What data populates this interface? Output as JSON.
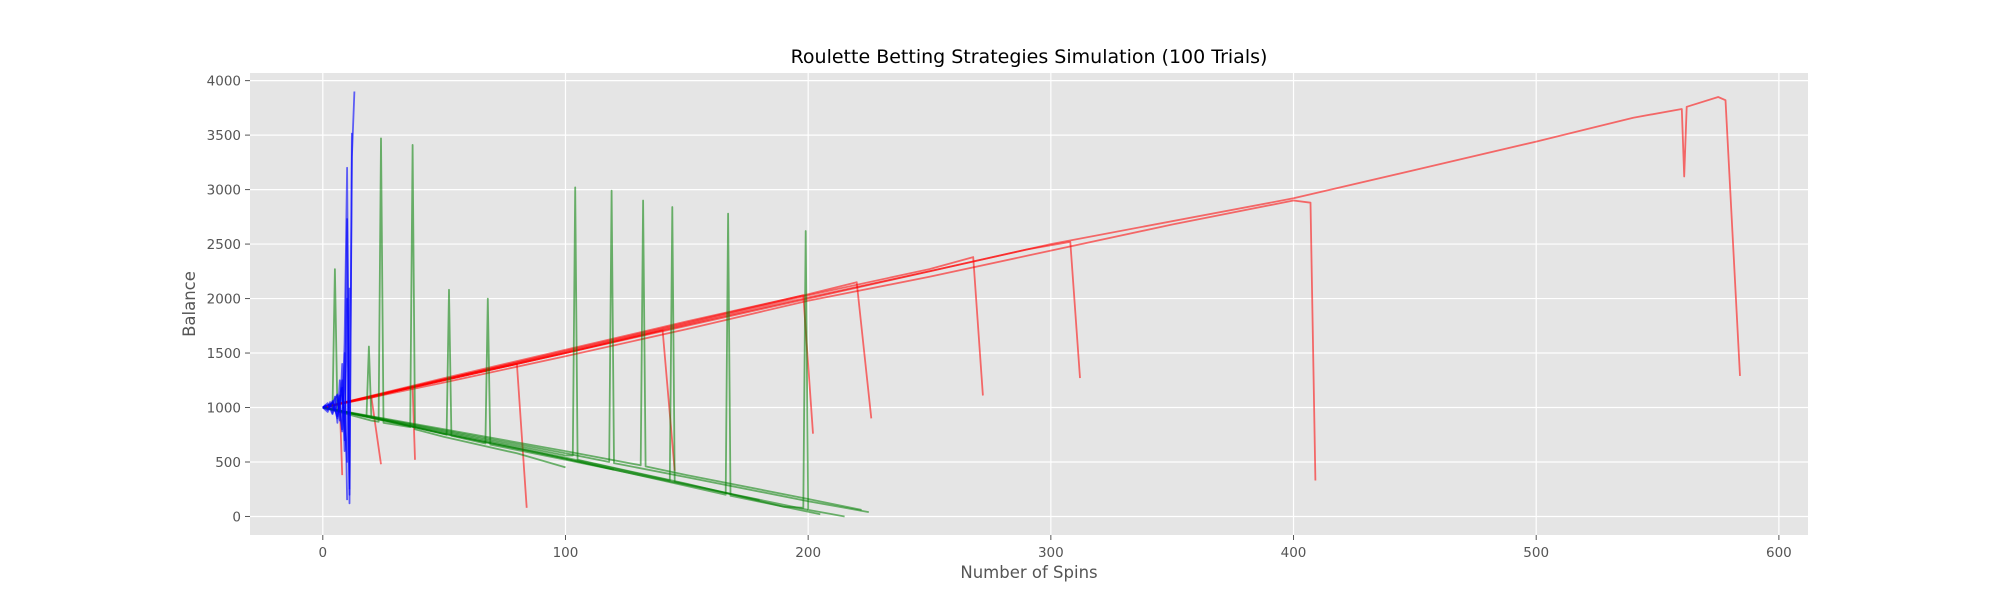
{
  "colors": {
    "background": "#ffffff",
    "plot_background": "#e5e5e5",
    "grid": "#ffffff",
    "text": "#555555",
    "title": "#000000"
  },
  "chart_data": {
    "type": "line",
    "title": "Roulette Betting Strategies Simulation (100 Trials)",
    "xlabel": "Number of Spins",
    "ylabel": "Balance",
    "xlim": [
      -30,
      612
    ],
    "ylim": [
      -170,
      4070
    ],
    "xticks": [
      0,
      100,
      200,
      300,
      400,
      500,
      600
    ],
    "yticks": [
      0,
      500,
      1000,
      1500,
      2000,
      2500,
      3000,
      3500,
      4000
    ],
    "grid": true,
    "legend": "none",
    "series": [
      {
        "color": "#ff0000",
        "opacity": 0.55,
        "x": [
          0,
          50,
          100,
          150,
          200,
          250,
          300,
          350,
          400,
          407,
          409
        ],
        "y": [
          1000,
          1230,
          1470,
          1720,
          1980,
          2200,
          2440,
          2680,
          2900,
          2880,
          330
        ]
      },
      {
        "color": "#ff0000",
        "opacity": 0.55,
        "x": [
          0,
          100,
          200,
          300,
          400,
          450,
          500,
          540,
          560,
          561,
          562,
          575,
          578,
          584
        ],
        "y": [
          1000,
          1500,
          2000,
          2500,
          2920,
          3180,
          3440,
          3660,
          3740,
          3120,
          3760,
          3850,
          3820,
          1290
        ]
      },
      {
        "color": "#ff0000",
        "opacity": 0.55,
        "x": [
          0,
          50,
          100,
          150,
          200,
          250,
          290,
          308,
          312
        ],
        "y": [
          1000,
          1250,
          1500,
          1760,
          2010,
          2250,
          2450,
          2520,
          1270
        ]
      },
      {
        "color": "#ff0000",
        "opacity": 0.55,
        "x": [
          0,
          50,
          100,
          150,
          200,
          250,
          268,
          272
        ],
        "y": [
          1000,
          1260,
          1510,
          1770,
          2030,
          2270,
          2380,
          1110
        ]
      },
      {
        "color": "#ff0000",
        "opacity": 0.55,
        "x": [
          0,
          50,
          100,
          150,
          200,
          220,
          226
        ],
        "y": [
          1000,
          1270,
          1530,
          1790,
          2040,
          2150,
          900
        ]
      },
      {
        "color": "#ff0000",
        "opacity": 0.55,
        "x": [
          0,
          50,
          100,
          150,
          198,
          202
        ],
        "y": [
          1000,
          1260,
          1520,
          1780,
          2030,
          760
        ]
      },
      {
        "color": "#ff0000",
        "opacity": 0.55,
        "x": [
          0,
          50,
          100,
          140,
          145
        ],
        "y": [
          1000,
          1250,
          1500,
          1710,
          420
        ]
      },
      {
        "color": "#ff0000",
        "opacity": 0.55,
        "x": [
          0,
          20,
          40,
          60,
          80,
          84
        ],
        "y": [
          1000,
          1100,
          1200,
          1310,
          1400,
          80
        ]
      },
      {
        "color": "#ff0000",
        "opacity": 0.55,
        "x": [
          0,
          20,
          37,
          38
        ],
        "y": [
          1000,
          1090,
          1190,
          520
        ]
      },
      {
        "color": "#ff0000",
        "opacity": 0.55,
        "x": [
          0,
          10,
          20,
          24
        ],
        "y": [
          1000,
          1050,
          1100,
          480
        ]
      },
      {
        "color": "#ff0000",
        "opacity": 0.55,
        "x": [
          0,
          5,
          7,
          8
        ],
        "y": [
          1000,
          1020,
          1040,
          380
        ]
      },
      {
        "color": "#008000",
        "opacity": 0.55,
        "x": [
          0,
          50,
          100,
          103,
          104,
          105,
          150,
          190,
          198,
          199,
          200,
          210,
          215
        ],
        "y": [
          1000,
          780,
          560,
          560,
          3020,
          520,
          300,
          90,
          80,
          2620,
          60,
          20,
          0
        ]
      },
      {
        "color": "#008000",
        "opacity": 0.55,
        "x": [
          0,
          50,
          100,
          118,
          119,
          120,
          150,
          200,
          225
        ],
        "y": [
          1000,
          790,
          580,
          500,
          2990,
          490,
          360,
          140,
          40
        ]
      },
      {
        "color": "#008000",
        "opacity": 0.55,
        "x": [
          0,
          50,
          100,
          131,
          132,
          133,
          150,
          200,
          222
        ],
        "y": [
          1000,
          800,
          600,
          470,
          2900,
          460,
          380,
          160,
          60
        ]
      },
      {
        "color": "#008000",
        "opacity": 0.55,
        "x": [
          0,
          50,
          100,
          143,
          144,
          145,
          170,
          200
        ],
        "y": [
          1000,
          770,
          540,
          330,
          2840,
          320,
          200,
          60
        ]
      },
      {
        "color": "#008000",
        "opacity": 0.55,
        "x": [
          0,
          50,
          100,
          166,
          167,
          168,
          190,
          205
        ],
        "y": [
          1000,
          760,
          530,
          200,
          2780,
          190,
          90,
          20
        ]
      },
      {
        "color": "#008000",
        "opacity": 0.55,
        "x": [
          0,
          20,
          23,
          24,
          25,
          36,
          37,
          38,
          50,
          80,
          100
        ],
        "y": [
          1000,
          880,
          870,
          3470,
          860,
          820,
          3410,
          800,
          730,
          580,
          450
        ]
      },
      {
        "color": "#008000",
        "opacity": 0.55,
        "x": [
          0,
          30,
          51,
          52,
          53,
          67,
          68,
          69,
          100,
          150,
          180
        ],
        "y": [
          1000,
          860,
          750,
          2080,
          740,
          670,
          2000,
          660,
          520,
          290,
          150
        ]
      },
      {
        "color": "#008000",
        "opacity": 0.55,
        "x": [
          0,
          4,
          5,
          6,
          10,
          18,
          19,
          20,
          50,
          90,
          120
        ],
        "y": [
          1000,
          980,
          2270,
          970,
          950,
          920,
          1560,
          910,
          760,
          580,
          430
        ]
      },
      {
        "color": "#0000ff",
        "opacity": 0.6,
        "x": [
          0,
          2,
          4,
          6,
          7,
          8,
          9,
          10,
          11,
          12,
          13
        ],
        "y": [
          1000,
          1020,
          1040,
          1120,
          880,
          1400,
          600,
          2000,
          200,
          3300,
          3900
        ]
      },
      {
        "color": "#0000ff",
        "opacity": 0.6,
        "x": [
          0,
          2,
          4,
          6,
          8,
          9,
          10,
          11,
          12
        ],
        "y": [
          1000,
          960,
          1060,
          900,
          1250,
          700,
          2730,
          120,
          3520
        ]
      },
      {
        "color": "#0000ff",
        "opacity": 0.6,
        "x": [
          0,
          3,
          5,
          7,
          8,
          9,
          10,
          11
        ],
        "y": [
          1000,
          1030,
          970,
          1110,
          800,
          1600,
          3200,
          250
        ]
      },
      {
        "color": "#0000ff",
        "opacity": 0.6,
        "x": [
          0,
          2,
          4,
          6,
          8,
          10,
          11
        ],
        "y": [
          1000,
          980,
          1050,
          920,
          1180,
          500,
          2100
        ]
      },
      {
        "color": "#0000ff",
        "opacity": 0.6,
        "x": [
          0,
          2,
          4,
          6,
          8,
          9,
          10
        ],
        "y": [
          1000,
          1040,
          940,
          1110,
          780,
          1500,
          150
        ]
      },
      {
        "color": "#0000ff",
        "opacity": 0.6,
        "x": [
          0,
          1,
          2,
          3,
          4,
          5,
          6,
          7,
          8
        ],
        "y": [
          1000,
          1020,
          980,
          1050,
          950,
          1100,
          860,
          1250,
          1050
        ]
      }
    ]
  }
}
